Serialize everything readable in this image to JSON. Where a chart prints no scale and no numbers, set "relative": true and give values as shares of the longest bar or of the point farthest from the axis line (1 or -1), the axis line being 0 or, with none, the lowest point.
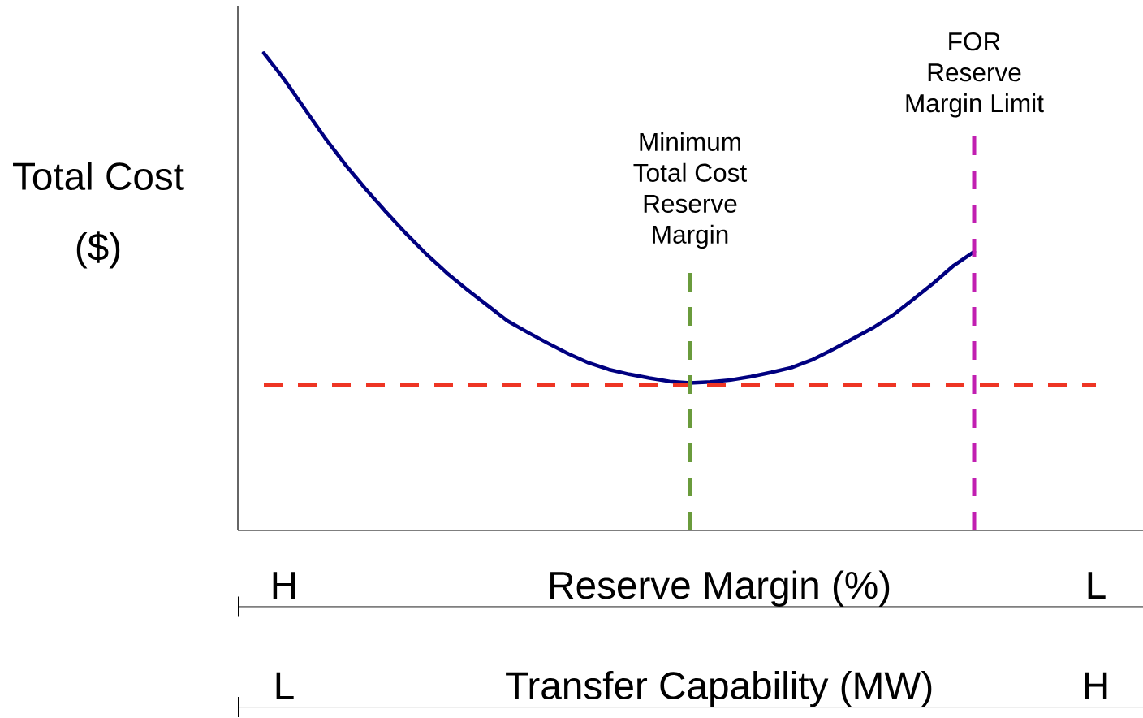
{
  "chart_data": {
    "type": "line",
    "relative": true,
    "xlabel": "Reserve Margin (%)",
    "x2label": "Transfer Capability (MW)",
    "ylabel": "Total Cost ($)",
    "categories": [
      null,
      "H",
      null,
      null,
      null,
      null,
      null,
      null,
      null,
      null,
      null,
      null,
      null,
      null,
      null,
      null,
      null,
      null,
      null,
      null,
      null,
      null,
      null,
      null,
      null,
      null,
      null,
      null,
      null,
      null,
      null,
      null,
      null,
      null,
      null,
      null,
      null,
      null,
      null,
      null,
      null,
      "L"
    ],
    "series": [
      {
        "color": "#000080",
        "values": [
          1.0,
          0.945,
          0.884,
          0.823,
          0.767,
          0.716,
          0.668,
          0.622,
          0.579,
          0.54,
          0.505,
          0.472,
          0.439,
          0.415,
          0.392,
          0.37,
          0.351,
          0.337,
          0.327,
          0.319,
          0.312,
          0.309,
          0.311,
          0.315,
          0.322,
          0.331,
          0.341,
          0.357,
          0.378,
          0.401,
          0.424,
          0.451,
          0.484,
          0.518,
          0.555,
          0.584,
          null,
          null,
          null,
          null,
          null,
          null
        ]
      }
    ],
    "ref_lines": [
      {
        "axis": "y",
        "value": 0.305,
        "color": "#ee3524",
        "line_style": "dashed"
      }
    ],
    "annotations": [
      "Minimum Total Cost Reserve Margin",
      "FOR Reserve Margin Limit",
      "L",
      "H"
    ]
  }
}
